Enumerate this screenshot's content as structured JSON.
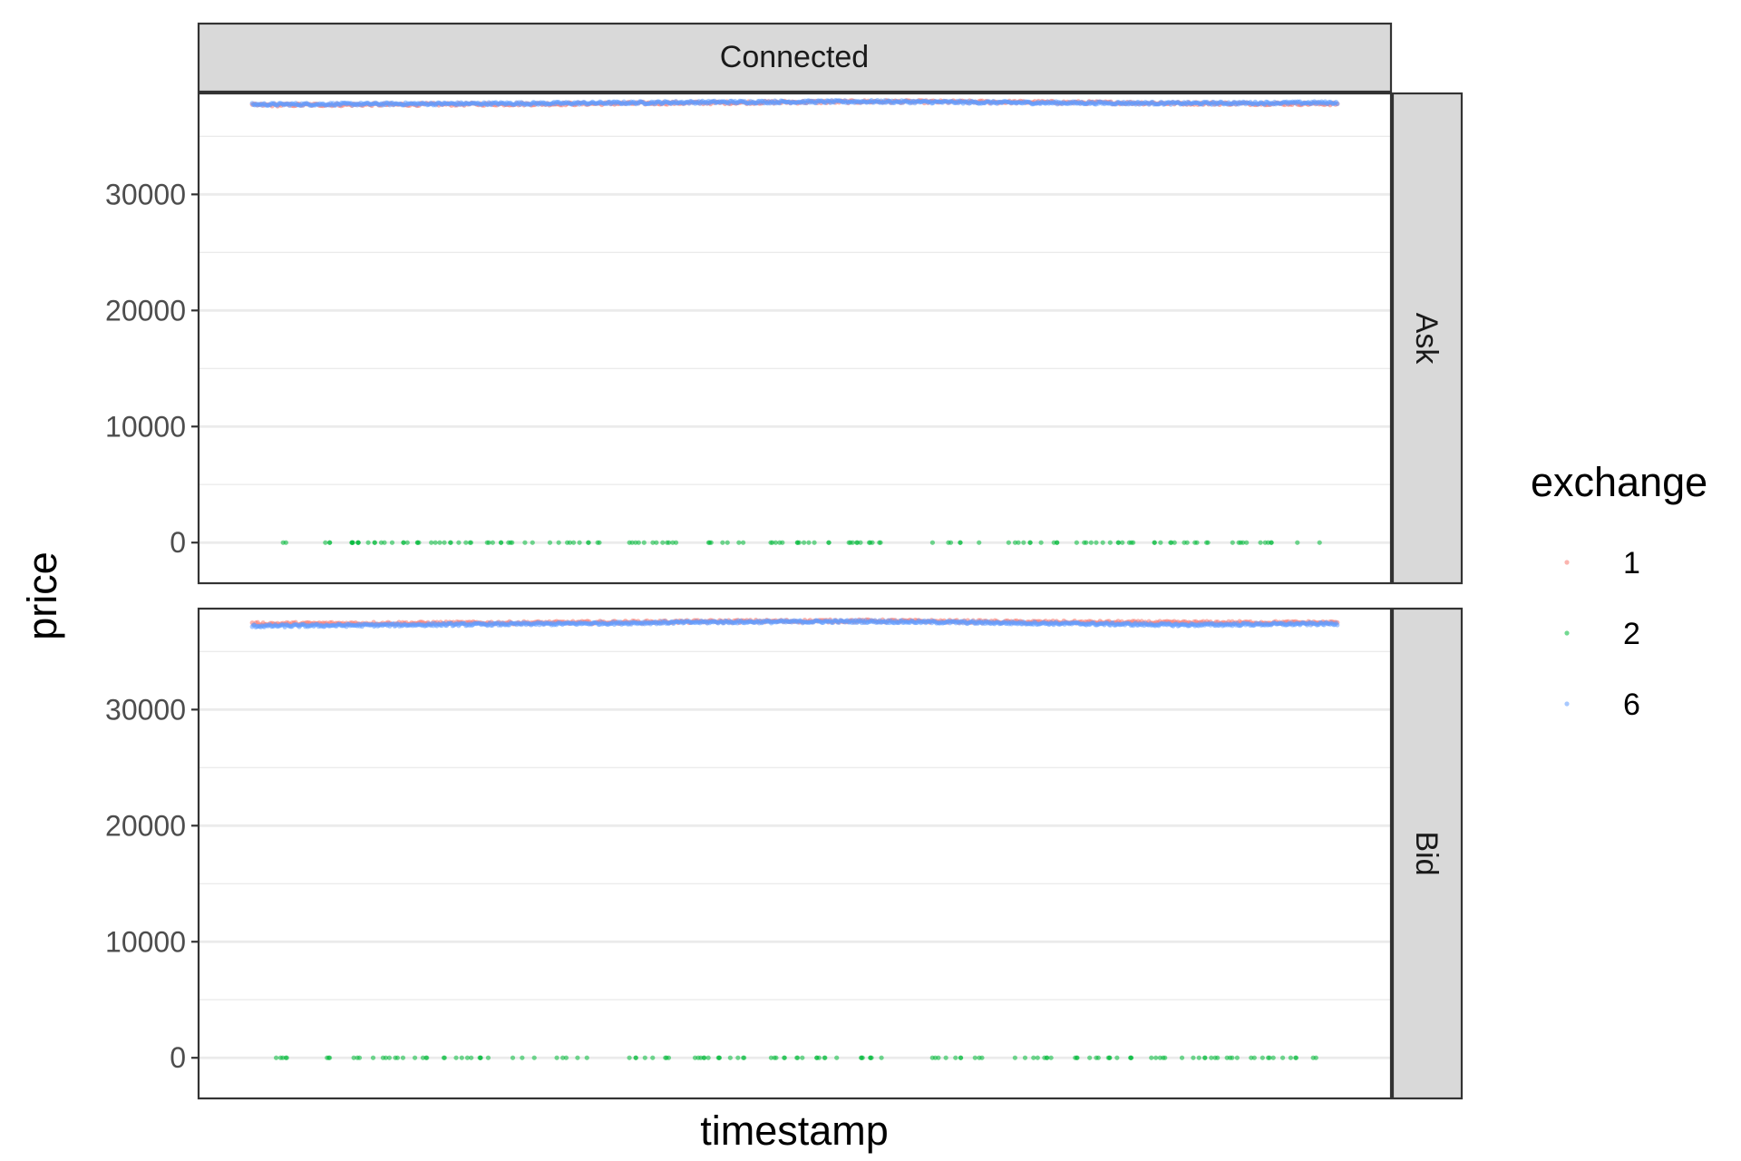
{
  "chart_data": {
    "type": "scatter",
    "facet_column": "Connected",
    "facet_rows": [
      "Ask",
      "Bid"
    ],
    "xlabel": "timestamp",
    "ylabel": "price",
    "ylim": [
      -3500,
      38700
    ],
    "yticks": [
      0,
      10000,
      20000,
      30000
    ],
    "x_tick_labels_shown": false,
    "grid": true,
    "legend_title": "exchange",
    "legend_position": "right",
    "series": [
      {
        "name": "1",
        "color": "#F8766D",
        "level": 37900,
        "description_level": "approx 37,700-38,000"
      },
      {
        "name": "2",
        "color": "#00BA38",
        "level": 0
      },
      {
        "name": "6",
        "color": "#619CFF",
        "level": 37900
      }
    ],
    "panels": [
      {
        "row": "Ask",
        "x": [
          0,
          1
        ],
        "exchange_1_y": [
          37700,
          37750,
          37800,
          37900,
          38000,
          37950,
          37850,
          37800
        ],
        "exchange_6_y": [
          37750,
          37800,
          37850,
          37950,
          38000,
          37900,
          37850,
          37900
        ],
        "exchange_2_y": [
          0
        ],
        "exchange_2_x": [
          0.03,
          0.07,
          0.09,
          0.095,
          0.1,
          0.11,
          0.12,
          0.13,
          0.14,
          0.155,
          0.165,
          0.175,
          0.18,
          0.19,
          0.2,
          0.215,
          0.22,
          0.23,
          0.24,
          0.25,
          0.26,
          0.275,
          0.28,
          0.29,
          0.3,
          0.31,
          0.32,
          0.35,
          0.36,
          0.37,
          0.38,
          0.39,
          0.42,
          0.43,
          0.44,
          0.45,
          0.48,
          0.49,
          0.5,
          0.51,
          0.52,
          0.53,
          0.55,
          0.56,
          0.57,
          0.58,
          0.63,
          0.64,
          0.65,
          0.67,
          0.7,
          0.71,
          0.72,
          0.73,
          0.74,
          0.76,
          0.77,
          0.78,
          0.79,
          0.8,
          0.81,
          0.83,
          0.84,
          0.85,
          0.86,
          0.87,
          0.88,
          0.9,
          0.91,
          0.92,
          0.93,
          0.94,
          0.96,
          0.98
        ]
      },
      {
        "row": "Bid",
        "x": [
          0,
          1
        ],
        "exchange_1_y": [
          37400,
          37450,
          37500,
          37600,
          37650,
          37550,
          37500,
          37500
        ],
        "exchange_6_y": [
          37200,
          37300,
          37400,
          37550,
          37600,
          37450,
          37300,
          37400
        ],
        "exchange_2_y": [
          0
        ],
        "exchange_2_x": [
          0.025,
          0.03,
          0.07,
          0.09,
          0.1,
          0.11,
          0.12,
          0.13,
          0.14,
          0.15,
          0.16,
          0.18,
          0.19,
          0.2,
          0.21,
          0.22,
          0.24,
          0.25,
          0.26,
          0.28,
          0.29,
          0.3,
          0.31,
          0.35,
          0.36,
          0.37,
          0.38,
          0.41,
          0.42,
          0.43,
          0.44,
          0.45,
          0.48,
          0.49,
          0.5,
          0.51,
          0.52,
          0.53,
          0.54,
          0.56,
          0.57,
          0.58,
          0.63,
          0.64,
          0.65,
          0.67,
          0.7,
          0.71,
          0.72,
          0.73,
          0.74,
          0.76,
          0.77,
          0.78,
          0.79,
          0.8,
          0.81,
          0.83,
          0.84,
          0.86,
          0.87,
          0.88,
          0.89,
          0.9,
          0.91,
          0.92,
          0.93,
          0.94,
          0.95,
          0.96,
          0.98
        ]
      }
    ]
  }
}
